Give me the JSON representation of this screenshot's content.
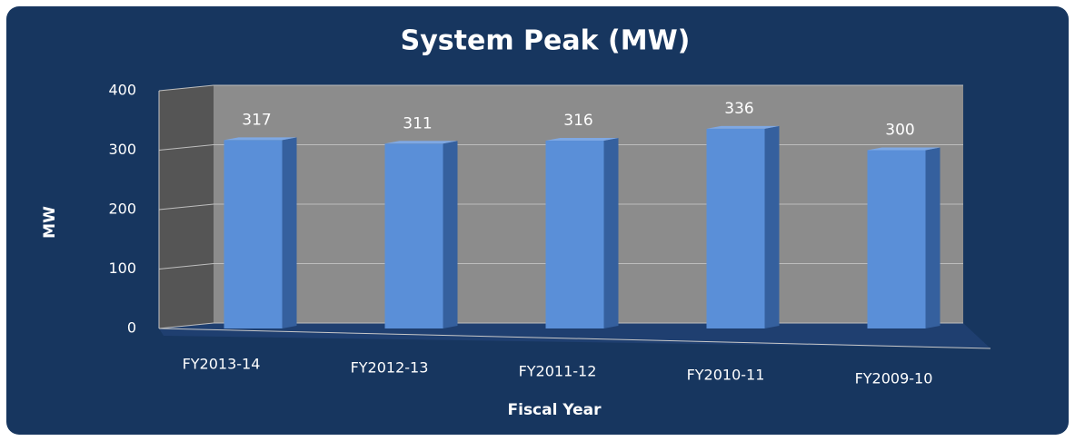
{
  "chart_data": {
    "type": "bar",
    "title": "System Peak (MW)",
    "x_label": "Fiscal Year",
    "y_label": "MW",
    "categories": [
      "FY2013-14",
      "FY2012-13",
      "FY2011-12",
      "FY2010-11",
      "FY2009-10"
    ],
    "values": [
      317,
      311,
      316,
      336,
      300
    ],
    "color": "#5a8fd8",
    "ylim": [
      0,
      400
    ],
    "yticks": [
      0,
      100,
      200,
      300,
      400
    ],
    "grid": true
  }
}
